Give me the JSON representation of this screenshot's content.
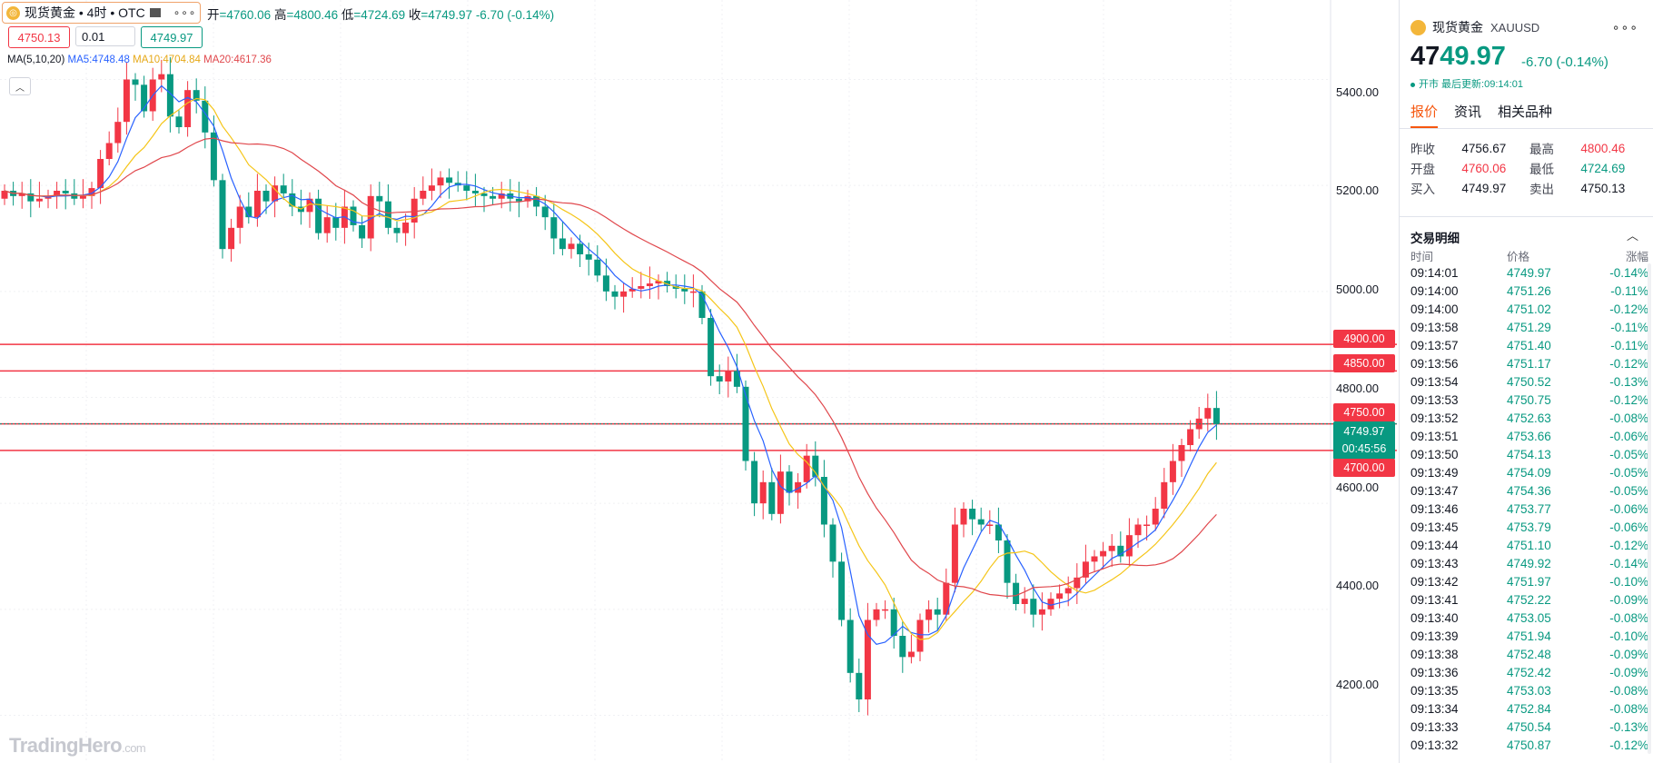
{
  "chart": {
    "symbol_label": "现货黄金 • 4时 • OTC",
    "more_icon": "ellipsis-icon",
    "ohlc": {
      "open_label": "开",
      "open": "=4760.06",
      "high_label": "高",
      "high": "=4800.46",
      "low_label": "低",
      "low": "=4724.69",
      "close_label": "收",
      "close": "=4749.97",
      "change": "-6.70 (-0.14%)"
    },
    "sell_price": "4750.13",
    "quantity": "0.01",
    "buy_price": "4749.97",
    "ma_prefix": "MA(5,10,20)",
    "ma5": "MA5:4748.48",
    "ma10": "MA10:4704.84",
    "ma20": "MA20:4617.36",
    "watermark_main": "TradingHero",
    "watermark_suffix": ".com",
    "axis_labels": [
      "5400.00",
      "5200.00",
      "5000.00",
      "4800.00",
      "4600.00",
      "4400.00",
      "4200.00"
    ],
    "alert_lines": [
      "4900.00",
      "4850.00",
      "4750.00",
      "4700.00"
    ],
    "last_price": "4749.97",
    "countdown": "00:45:56",
    "colors": {
      "up": "#f23645",
      "down": "#089981",
      "ma5": "#2962ff",
      "ma10": "#f5c518",
      "ma20": "#e0474c",
      "alert": "#f23645"
    }
  },
  "chart_data": {
    "type": "candlestick",
    "title": "现货黄金 • 4时 • OTC",
    "ylim": [
      4110,
      5550
    ],
    "y_ticks": [
      4200,
      4400,
      4600,
      4800,
      5000,
      5200,
      5400
    ],
    "horizontal_lines": [
      4900,
      4850,
      4750,
      4700
    ],
    "last": 4749.97,
    "series_names": [
      "MA5",
      "MA10",
      "MA20"
    ],
    "closes": [
      5190,
      5180,
      5185,
      5170,
      5175,
      5180,
      5190,
      5185,
      5175,
      5180,
      5195,
      5250,
      5280,
      5320,
      5400,
      5390,
      5340,
      5400,
      5410,
      5330,
      5310,
      5380,
      5360,
      5300,
      5210,
      5080,
      5120,
      5160,
      5140,
      5190,
      5170,
      5200,
      5185,
      5160,
      5150,
      5175,
      5110,
      5140,
      5120,
      5160,
      5125,
      5100,
      5180,
      5170,
      5120,
      5110,
      5130,
      5175,
      5190,
      5200,
      5215,
      5205,
      5200,
      5190,
      5185,
      5180,
      5175,
      5185,
      5175,
      5170,
      5180,
      5160,
      5140,
      5100,
      5080,
      5090,
      5070,
      5060,
      5030,
      5000,
      4990,
      5000,
      5005,
      5010,
      5015,
      5020,
      5010,
      5005,
      5000,
      5000,
      4950,
      4840,
      4830,
      4850,
      4820,
      4680,
      4600,
      4640,
      4580,
      4660,
      4620,
      4640,
      4690,
      4650,
      4560,
      4490,
      4380,
      4280,
      4230,
      4380,
      4400,
      4400,
      4350,
      4310,
      4320,
      4380,
      4400,
      4390,
      4450,
      4560,
      4590,
      4570,
      4560,
      4560,
      4530,
      4450,
      4410,
      4420,
      4390,
      4400,
      4420,
      4430,
      4440,
      4460,
      4490,
      4500,
      4510,
      4520,
      4500,
      4540,
      4560,
      4560,
      4590,
      4640,
      4680,
      4710,
      4740,
      4760,
      4780,
      4750
    ],
    "opens": [
      5175,
      5190,
      5180,
      5185,
      5170,
      5175,
      5180,
      5190,
      5185,
      5175,
      5180,
      5195,
      5250,
      5280,
      5320,
      5400,
      5390,
      5340,
      5400,
      5410,
      5330,
      5310,
      5380,
      5360,
      5300,
      5210,
      5080,
      5120,
      5160,
      5140,
      5190,
      5170,
      5200,
      5185,
      5160,
      5150,
      5175,
      5110,
      5140,
      5120,
      5160,
      5125,
      5100,
      5180,
      5170,
      5120,
      5110,
      5130,
      5175,
      5190,
      5200,
      5215,
      5205,
      5200,
      5190,
      5185,
      5180,
      5175,
      5185,
      5175,
      5170,
      5180,
      5160,
      5140,
      5100,
      5080,
      5090,
      5070,
      5060,
      5030,
      5000,
      4990,
      5000,
      5005,
      5010,
      5015,
      5020,
      5010,
      5005,
      5000,
      5000,
      4950,
      4840,
      4830,
      4850,
      4820,
      4680,
      4600,
      4640,
      4580,
      4660,
      4620,
      4640,
      4690,
      4650,
      4560,
      4490,
      4380,
      4280,
      4230,
      4380,
      4400,
      4400,
      4350,
      4310,
      4320,
      4380,
      4400,
      4390,
      4450,
      4560,
      4590,
      4570,
      4560,
      4560,
      4530,
      4450,
      4410,
      4420,
      4390,
      4400,
      4420,
      4430,
      4440,
      4460,
      4490,
      4500,
      4510,
      4520,
      4500,
      4540,
      4560,
      4560,
      4590,
      4640,
      4680,
      4710,
      4740,
      4760,
      4780
    ],
    "ma5_last": 4748.48,
    "ma10_last": 4704.84,
    "ma20_last": 4617.36
  },
  "panel": {
    "title": "现货黄金",
    "code": "XAUUSD",
    "more_icon": "ellipsis-icon",
    "price_head": "47",
    "price_tail": "49.97",
    "change": "-6.70 (-0.14%)",
    "status": "开市 最后更新:09:14:01",
    "tabs": [
      "报价",
      "资讯",
      "相关品种"
    ],
    "quote_rows": [
      {
        "l1": "昨收",
        "v1": "4756.67",
        "l2": "最高",
        "v2": "4800.46"
      },
      {
        "l1": "开盘",
        "v1": "4760.06",
        "l2": "最低",
        "v2": "4724.69"
      },
      {
        "l1": "买入",
        "v1": "4749.97",
        "l2": "卖出",
        "v2": "4750.13"
      }
    ],
    "trades_title": "交易明细",
    "trades_cols": [
      "时间",
      "价格",
      "涨幅"
    ],
    "trades": [
      [
        "09:14:01",
        "4749.97",
        "-0.14%"
      ],
      [
        "09:14:00",
        "4751.26",
        "-0.11%"
      ],
      [
        "09:14:00",
        "4751.02",
        "-0.12%"
      ],
      [
        "09:13:58",
        "4751.29",
        "-0.11%"
      ],
      [
        "09:13:57",
        "4751.40",
        "-0.11%"
      ],
      [
        "09:13:56",
        "4751.17",
        "-0.12%"
      ],
      [
        "09:13:54",
        "4750.52",
        "-0.13%"
      ],
      [
        "09:13:53",
        "4750.75",
        "-0.12%"
      ],
      [
        "09:13:52",
        "4752.63",
        "-0.08%"
      ],
      [
        "09:13:51",
        "4753.66",
        "-0.06%"
      ],
      [
        "09:13:50",
        "4754.13",
        "-0.05%"
      ],
      [
        "09:13:49",
        "4754.09",
        "-0.05%"
      ],
      [
        "09:13:47",
        "4754.36",
        "-0.05%"
      ],
      [
        "09:13:46",
        "4753.77",
        "-0.06%"
      ],
      [
        "09:13:45",
        "4753.79",
        "-0.06%"
      ],
      [
        "09:13:44",
        "4751.10",
        "-0.12%"
      ],
      [
        "09:13:43",
        "4749.92",
        "-0.14%"
      ],
      [
        "09:13:42",
        "4751.97",
        "-0.10%"
      ],
      [
        "09:13:41",
        "4752.22",
        "-0.09%"
      ],
      [
        "09:13:40",
        "4753.05",
        "-0.08%"
      ],
      [
        "09:13:39",
        "4751.94",
        "-0.10%"
      ],
      [
        "09:13:38",
        "4752.48",
        "-0.09%"
      ],
      [
        "09:13:36",
        "4752.42",
        "-0.09%"
      ],
      [
        "09:13:35",
        "4753.03",
        "-0.08%"
      ],
      [
        "09:13:34",
        "4752.84",
        "-0.08%"
      ],
      [
        "09:13:33",
        "4750.54",
        "-0.13%"
      ],
      [
        "09:13:32",
        "4750.87",
        "-0.12%"
      ]
    ]
  }
}
